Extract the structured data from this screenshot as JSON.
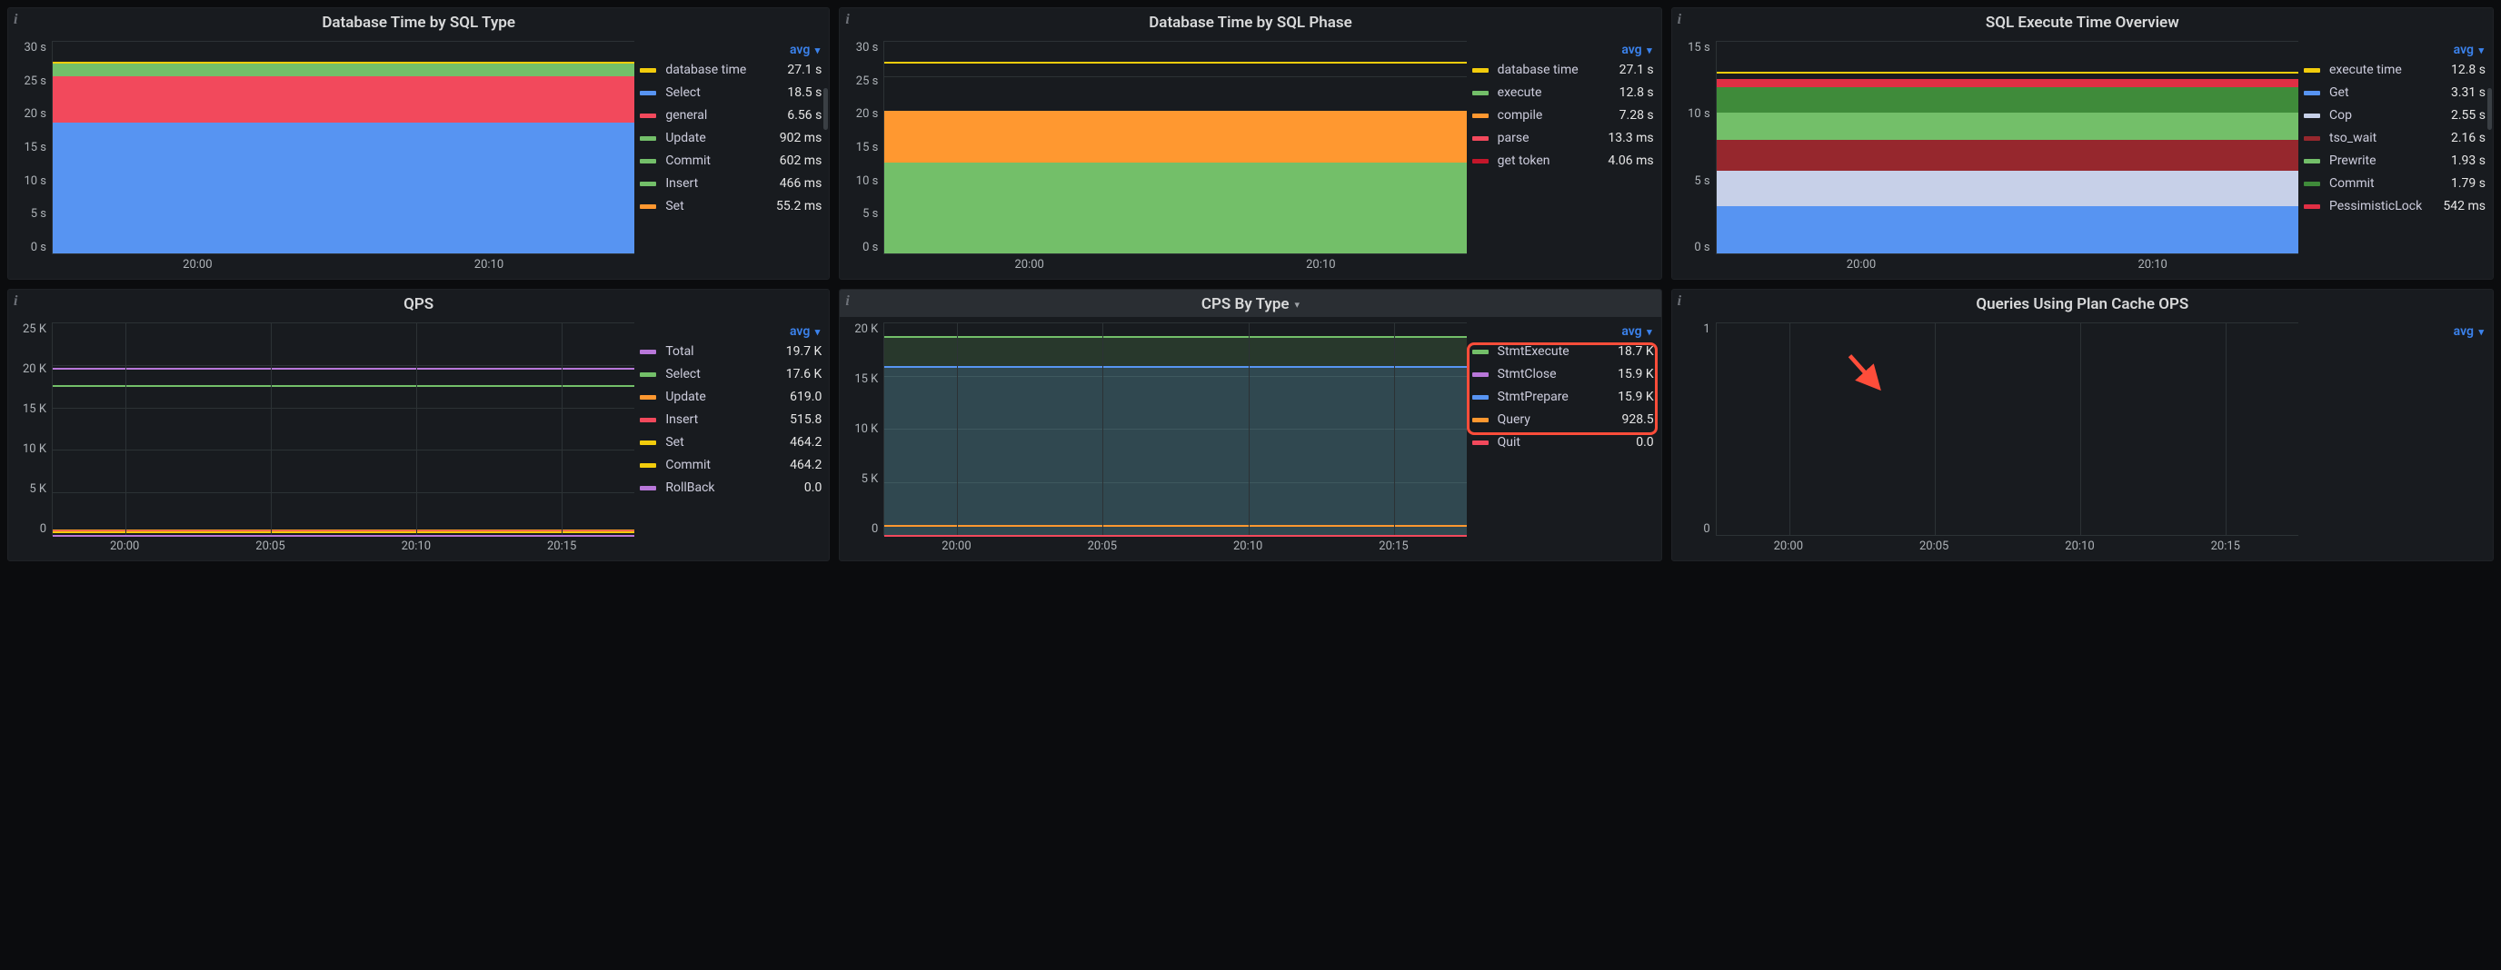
{
  "background_color": "#0b0c0e",
  "panel_bg": "#181b1f",
  "text_color": "#ccccdc",
  "accent_blue": "#3b82ec",
  "annotation_color": "#ff4d3a",
  "grid_color": "#2c3235",
  "panels": [
    {
      "id": "db_time_sql_type",
      "title": "Database Time by SQL Type",
      "agg": "avg",
      "type": "stacked-area",
      "y": {
        "ticks": [
          "30 s",
          "25 s",
          "20 s",
          "15 s",
          "10 s",
          "5 s",
          "0 s"
        ],
        "lim": [
          0,
          30
        ]
      },
      "x": {
        "ticks": [
          "20:00",
          "20:10"
        ]
      },
      "series": [
        {
          "label": "database time",
          "value": "27.1 s",
          "color": "#f2cc0c",
          "stack_top": 27,
          "render": "line"
        },
        {
          "label": "Select",
          "value": "18.5 s",
          "color": "#5794f2",
          "stack_top": 18.5
        },
        {
          "label": "general",
          "value": "6.56 s",
          "color": "#f2495c",
          "stack_top": 25.06
        },
        {
          "label": "Update",
          "value": "902 ms",
          "color": "#73bf69",
          "stack_top": 25.96
        },
        {
          "label": "Commit",
          "value": "602 ms",
          "color": "#73bf69",
          "stack_top": 26.56
        },
        {
          "label": "Insert",
          "value": "466 ms",
          "color": "#73bf69",
          "stack_top": 27.03
        },
        {
          "label": "Set",
          "value": "55.2 ms",
          "color": "#ff9830",
          "stack_top": 27.08
        }
      ],
      "scroll_indicator": true
    },
    {
      "id": "db_time_sql_phase",
      "title": "Database Time by SQL Phase",
      "agg": "avg",
      "type": "stacked-area",
      "y": {
        "ticks": [
          "30 s",
          "25 s",
          "20 s",
          "15 s",
          "10 s",
          "5 s",
          "0 s"
        ],
        "lim": [
          0,
          30
        ]
      },
      "x": {
        "ticks": [
          "20:00",
          "20:10"
        ]
      },
      "series": [
        {
          "label": "database time",
          "value": "27.1 s",
          "color": "#f2cc0c",
          "stack_top": 27,
          "render": "line"
        },
        {
          "label": "execute",
          "value": "12.8 s",
          "color": "#73bf69",
          "stack_top": 12.8
        },
        {
          "label": "compile",
          "value": "7.28 s",
          "color": "#ff9830",
          "stack_top": 20.08
        },
        {
          "label": "parse",
          "value": "13.3 ms",
          "color": "#f2495c",
          "stack_top": 20.09
        },
        {
          "label": "get token",
          "value": "4.06 ms",
          "color": "#c4162a",
          "stack_top": 20.1
        }
      ]
    },
    {
      "id": "sql_exe_overview",
      "title": "SQL Execute Time Overview",
      "agg": "avg",
      "type": "stacked-area",
      "y": {
        "ticks": [
          "15 s",
          "10 s",
          "5 s",
          "0 s"
        ],
        "lim": [
          0,
          15
        ]
      },
      "x": {
        "ticks": [
          "20:00",
          "20:10"
        ]
      },
      "series": [
        {
          "label": "execute time",
          "value": "12.8 s",
          "color": "#f2cc0c",
          "stack_top": 12.8,
          "render": "line"
        },
        {
          "label": "Get",
          "value": "3.31 s",
          "color": "#5794f2",
          "stack_top": 3.31
        },
        {
          "label": "Cop",
          "value": "2.55 s",
          "color": "#c7d0e8",
          "stack_top": 5.86
        },
        {
          "label": "tso_wait",
          "value": "2.16 s",
          "color": "#96272d",
          "stack_top": 8.02
        },
        {
          "label": "Prewrite",
          "value": "1.93 s",
          "color": "#73bf69",
          "stack_top": 9.95
        },
        {
          "label": "Commit",
          "value": "1.79 s",
          "color": "#3f8b3a",
          "stack_top": 11.74
        },
        {
          "label": "PessimisticLock",
          "value": "542 ms",
          "color": "#e02f44",
          "stack_top": 12.28
        }
      ],
      "scroll_indicator": true
    },
    {
      "id": "qps",
      "title": "QPS",
      "agg": "avg",
      "type": "line",
      "y": {
        "ticks": [
          "25 K",
          "20 K",
          "15 K",
          "10 K",
          "5 K",
          "0"
        ],
        "lim": [
          0,
          25
        ]
      },
      "x": {
        "ticks": [
          "20:00",
          "20:05",
          "20:10",
          "20:15"
        ]
      },
      "series": [
        {
          "label": "Total",
          "value": "19.7 K",
          "color": "#b877d9",
          "line_y": 19.7
        },
        {
          "label": "Select",
          "value": "17.6 K",
          "color": "#73bf69",
          "line_y": 17.6
        },
        {
          "label": "Update",
          "value": "619.0",
          "color": "#ff9830",
          "line_y": 0.62
        },
        {
          "label": "Insert",
          "value": "515.8",
          "color": "#f2495c",
          "line_y": 0.52
        },
        {
          "label": "Set",
          "value": "464.2",
          "color": "#f2cc0c",
          "line_y": 0.46
        },
        {
          "label": "Commit",
          "value": "464.2",
          "color": "#f2cc0c",
          "line_y": 0.46
        },
        {
          "label": "RollBack",
          "value": "0.0",
          "color": "#b877d9",
          "line_y": 0
        }
      ]
    },
    {
      "id": "cps_by_type",
      "title": "CPS By Type",
      "title_chevron": true,
      "highlight_panel": true,
      "agg": "avg",
      "type": "line-area",
      "y": {
        "ticks": [
          "20 K",
          "15 K",
          "10 K",
          "5 K",
          "0"
        ],
        "lim": [
          0,
          20
        ]
      },
      "x": {
        "ticks": [
          "20:00",
          "20:05",
          "20:10",
          "20:15"
        ]
      },
      "series": [
        {
          "label": "StmtExecute",
          "value": "18.7 K",
          "color": "#73bf69",
          "line_y": 18.7,
          "area": true,
          "hl": true
        },
        {
          "label": "StmtClose",
          "value": "15.9 K",
          "color": "#b877d9",
          "line_y": 15.9,
          "hl": true
        },
        {
          "label": "StmtPrepare",
          "value": "15.9 K",
          "color": "#5794f2",
          "line_y": 15.9,
          "area": true,
          "hl": true
        },
        {
          "label": "Query",
          "value": "928.5",
          "color": "#ff9830",
          "line_y": 0.93
        },
        {
          "label": "Quit",
          "value": "0.0",
          "color": "#f2495c",
          "line_y": 0
        }
      ],
      "legend_highlight": {
        "rows": [
          0,
          1,
          2
        ]
      }
    },
    {
      "id": "plan_cache_ops",
      "title": "Queries Using Plan Cache OPS",
      "agg": "avg",
      "type": "line",
      "y": {
        "ticks": [
          "1",
          "0"
        ],
        "lim": [
          0,
          1
        ]
      },
      "x": {
        "ticks": [
          "20:00",
          "20:05",
          "20:10",
          "20:15"
        ]
      },
      "series": [],
      "arrow_annotation": {
        "left_pct": 22,
        "top_pct": 14
      }
    }
  ]
}
